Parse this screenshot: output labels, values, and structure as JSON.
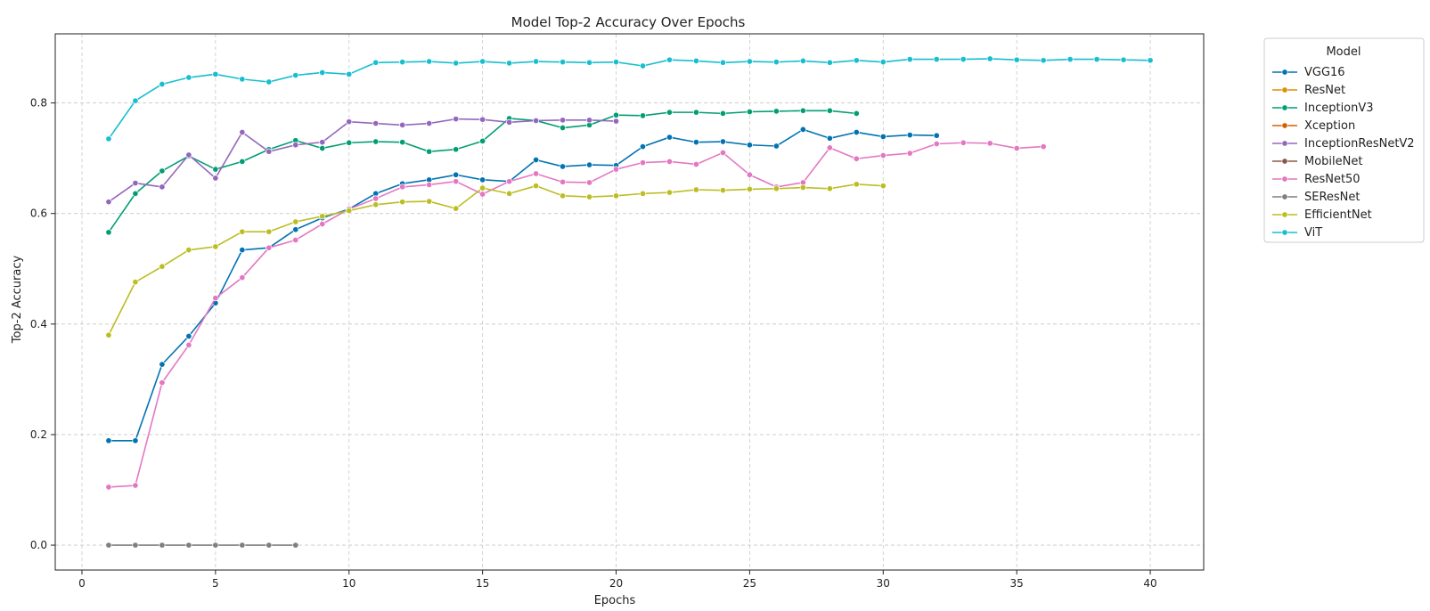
{
  "chart_data": {
    "type": "line",
    "title": "Model Top-2 Accuracy Over Epochs",
    "xlabel": "Epochs",
    "ylabel": "Top-2 Accuracy",
    "xlim": [
      -1,
      42
    ],
    "ylim": [
      -0.045,
      0.925
    ],
    "xticks": [
      0,
      5,
      10,
      15,
      20,
      25,
      30,
      35,
      40
    ],
    "yticks": [
      0.0,
      0.2,
      0.4,
      0.6,
      0.8
    ],
    "ytick_labels": [
      "0.0",
      "0.2",
      "0.4",
      "0.6",
      "0.8"
    ],
    "grid": true,
    "legend_title": "Model",
    "legend_position": "outside-top-right",
    "series": [
      {
        "name": "VGG16",
        "color": "#0173b2",
        "x": [
          1,
          2,
          3,
          4,
          5,
          6,
          7,
          8,
          9,
          10,
          11,
          12,
          13,
          14,
          15,
          16,
          17,
          18,
          19,
          20,
          21,
          22,
          23,
          24,
          25,
          26,
          27,
          28,
          29,
          30,
          31,
          32
        ],
        "values": [
          0.189,
          0.189,
          0.327,
          0.378,
          0.438,
          0.534,
          0.538,
          0.571,
          0.592,
          0.608,
          0.636,
          0.654,
          0.661,
          0.67,
          0.661,
          0.658,
          0.697,
          0.685,
          0.688,
          0.687,
          0.721,
          0.738,
          0.729,
          0.73,
          0.724,
          0.722,
          0.752,
          0.736,
          0.747,
          0.739,
          0.742,
          0.741
        ]
      },
      {
        "name": "ResNet",
        "color": "#de8f05",
        "x": [],
        "values": []
      },
      {
        "name": "InceptionV3",
        "color": "#029e73",
        "x": [
          1,
          2,
          3,
          4,
          5,
          6,
          7,
          8,
          9,
          10,
          11,
          12,
          13,
          14,
          15,
          16,
          17,
          18,
          19,
          20,
          21,
          22,
          23,
          24,
          25,
          26,
          27,
          28,
          29
        ],
        "values": [
          0.566,
          0.636,
          0.677,
          0.704,
          0.68,
          0.694,
          0.716,
          0.732,
          0.718,
          0.728,
          0.73,
          0.729,
          0.712,
          0.716,
          0.731,
          0.772,
          0.768,
          0.755,
          0.76,
          0.778,
          0.777,
          0.783,
          0.783,
          0.781,
          0.784,
          0.785,
          0.786,
          0.786,
          0.781
        ]
      },
      {
        "name": "Xception",
        "color": "#d55e00",
        "x": [],
        "values": []
      },
      {
        "name": "InceptionResNetV2",
        "color": "#9467bd",
        "x": [
          1,
          2,
          3,
          4,
          5,
          6,
          7,
          8,
          9,
          10,
          11,
          12,
          13,
          14,
          15,
          16,
          17,
          18,
          19,
          20
        ],
        "values": [
          0.621,
          0.655,
          0.648,
          0.706,
          0.664,
          0.747,
          0.712,
          0.724,
          0.729,
          0.766,
          0.763,
          0.76,
          0.763,
          0.771,
          0.77,
          0.765,
          0.768,
          0.769,
          0.769,
          0.767
        ]
      },
      {
        "name": "MobileNet",
        "color": "#8c564b",
        "x": [],
        "values": []
      },
      {
        "name": "ResNet50",
        "color": "#e377c2",
        "x": [
          1,
          2,
          3,
          4,
          5,
          6,
          7,
          8,
          9,
          10,
          11,
          12,
          13,
          14,
          15,
          16,
          17,
          18,
          19,
          20,
          21,
          22,
          23,
          24,
          25,
          26,
          27,
          28,
          29,
          30,
          31,
          32,
          33,
          34,
          35,
          36
        ],
        "values": [
          0.105,
          0.108,
          0.294,
          0.362,
          0.447,
          0.484,
          0.538,
          0.552,
          0.581,
          0.608,
          0.627,
          0.648,
          0.652,
          0.658,
          0.635,
          0.658,
          0.672,
          0.657,
          0.656,
          0.68,
          0.692,
          0.694,
          0.689,
          0.71,
          0.67,
          0.648,
          0.656,
          0.719,
          0.699,
          0.705,
          0.709,
          0.726,
          0.728,
          0.727,
          0.718,
          0.721
        ]
      },
      {
        "name": "SEResNet",
        "color": "#7f7f7f",
        "x": [
          1,
          2,
          3,
          4,
          5,
          6,
          7,
          8
        ],
        "values": [
          0.0,
          0.0,
          0.0,
          0.0,
          0.0,
          0.0,
          0.0,
          0.0
        ]
      },
      {
        "name": "EfficientNet",
        "color": "#bcbd22",
        "x": [
          1,
          2,
          3,
          4,
          5,
          6,
          7,
          8,
          9,
          10,
          11,
          12,
          13,
          14,
          15,
          16,
          17,
          18,
          19,
          20,
          21,
          22,
          23,
          24,
          25,
          26,
          27,
          28,
          29,
          30
        ],
        "values": [
          0.38,
          0.476,
          0.504,
          0.534,
          0.54,
          0.567,
          0.567,
          0.585,
          0.595,
          0.605,
          0.616,
          0.621,
          0.622,
          0.609,
          0.646,
          0.636,
          0.65,
          0.632,
          0.63,
          0.632,
          0.636,
          0.638,
          0.643,
          0.642,
          0.644,
          0.645,
          0.647,
          0.645,
          0.653,
          0.65
        ]
      },
      {
        "name": "ViT",
        "color": "#17becf",
        "x": [
          1,
          2,
          3,
          4,
          5,
          6,
          7,
          8,
          9,
          10,
          11,
          12,
          13,
          14,
          15,
          16,
          17,
          18,
          19,
          20,
          21,
          22,
          23,
          24,
          25,
          26,
          27,
          28,
          29,
          30,
          31,
          32,
          33,
          34,
          35,
          36,
          37,
          38,
          39,
          40
        ],
        "values": [
          0.735,
          0.804,
          0.834,
          0.846,
          0.852,
          0.843,
          0.838,
          0.85,
          0.855,
          0.852,
          0.873,
          0.874,
          0.875,
          0.872,
          0.875,
          0.872,
          0.875,
          0.874,
          0.873,
          0.874,
          0.867,
          0.878,
          0.876,
          0.873,
          0.875,
          0.874,
          0.876,
          0.873,
          0.877,
          0.874,
          0.879,
          0.879,
          0.879,
          0.88,
          0.878,
          0.877,
          0.879,
          0.879,
          0.878,
          0.877
        ]
      }
    ]
  }
}
